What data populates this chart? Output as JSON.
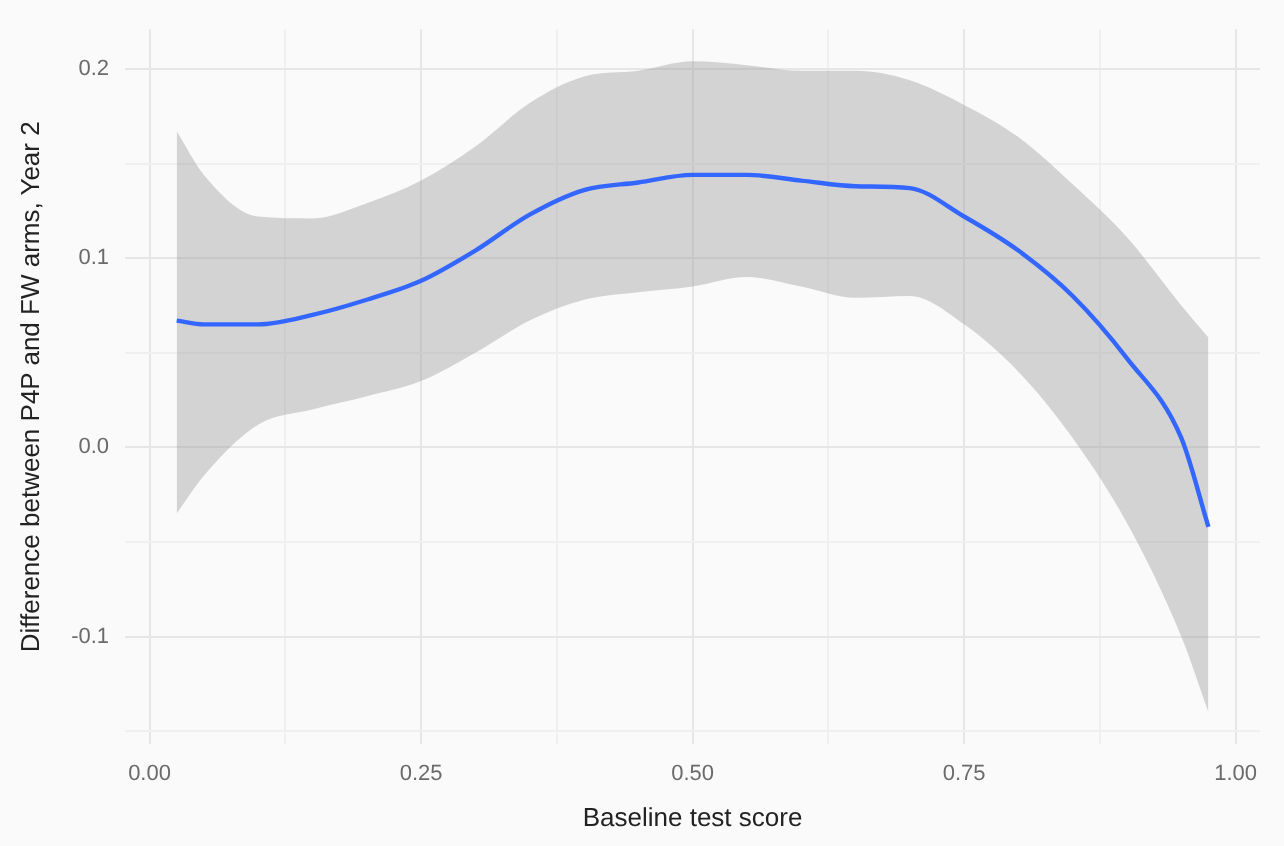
{
  "chart_data": {
    "type": "line",
    "xlabel": "Baseline test score",
    "ylabel": "Difference between P4P and FW arms, Year 2",
    "x": [
      0.025,
      0.05,
      0.1,
      0.15,
      0.2,
      0.25,
      0.3,
      0.35,
      0.4,
      0.45,
      0.5,
      0.55,
      0.6,
      0.65,
      0.7,
      0.75,
      0.8,
      0.85,
      0.9,
      0.95,
      0.975
    ],
    "series": [
      {
        "color": "#3366ff",
        "values": [
          0.067,
          0.065,
          0.065,
          0.07,
          0.078,
          0.088,
          0.104,
          0.123,
          0.136,
          0.14,
          0.144,
          0.144,
          0.141,
          0.138,
          0.137,
          0.122,
          0.104,
          0.08,
          0.047,
          0.005,
          -0.042
        ],
        "lower": [
          -0.035,
          -0.015,
          0.012,
          0.02,
          0.027,
          0.035,
          0.05,
          0.067,
          0.078,
          0.082,
          0.085,
          0.09,
          0.085,
          0.079,
          0.08,
          0.065,
          0.04,
          0.005,
          -0.04,
          -0.1,
          -0.14
        ],
        "upper": [
          0.167,
          0.144,
          0.122,
          0.121,
          0.129,
          0.141,
          0.159,
          0.182,
          0.196,
          0.199,
          0.204,
          0.202,
          0.199,
          0.199,
          0.194,
          0.181,
          0.164,
          0.139,
          0.111,
          0.075,
          0.058
        ]
      }
    ],
    "xlim": [
      -0.0225,
      1.0225
    ],
    "ylim": [
      -0.157,
      0.221
    ],
    "xticks": [
      {
        "value": 0,
        "label": "0.00"
      },
      {
        "value": 0.125,
        "label": null
      },
      {
        "value": 0.25,
        "label": "0.25"
      },
      {
        "value": 0.375,
        "label": null
      },
      {
        "value": 0.5,
        "label": "0.50"
      },
      {
        "value": 0.625,
        "label": null
      },
      {
        "value": 0.75,
        "label": "0.75"
      },
      {
        "value": 0.875,
        "label": null
      },
      {
        "value": 1,
        "label": "1.00"
      }
    ],
    "yticks": [
      {
        "value": -0.15,
        "label": null
      },
      {
        "value": -0.1,
        "label": "-0.1"
      },
      {
        "value": -0.05,
        "label": null
      },
      {
        "value": 0,
        "label": "0.0"
      },
      {
        "value": 0.05,
        "label": null
      },
      0.1,
      {
        "value": 0.15,
        "label": null
      },
      0.2
    ],
    "grid": true,
    "legend": false,
    "marker": "none",
    "line_style": "solid"
  }
}
